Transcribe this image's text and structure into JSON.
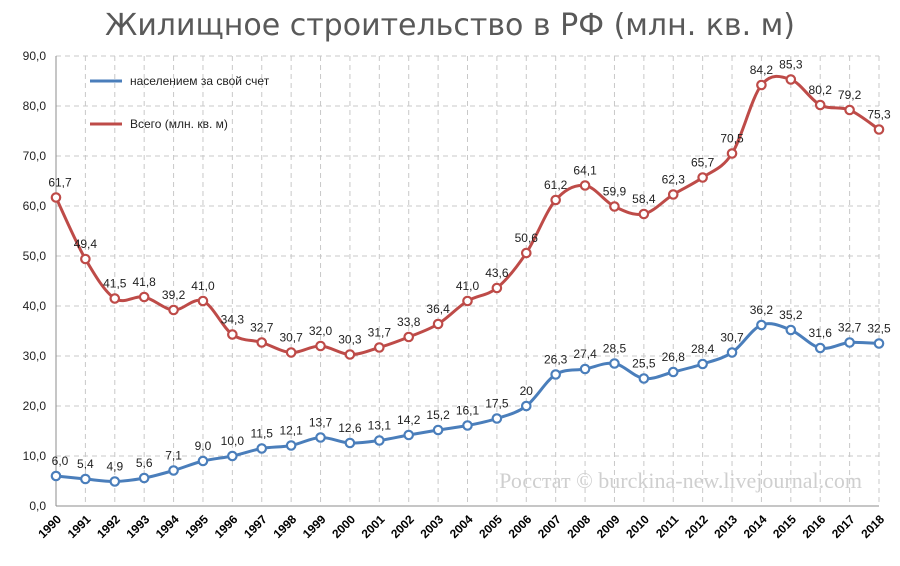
{
  "chart_data": {
    "type": "line",
    "title": "Жилищное строительство в РФ (млн. кв. м)",
    "xlabel": "",
    "ylabel": "",
    "ylim": [
      0,
      90
    ],
    "y_ticks": [
      "0,0",
      "10,0",
      "20,0",
      "30,0",
      "40,0",
      "50,0",
      "60,0",
      "70,0",
      "80,0",
      "90,0"
    ],
    "grid": true,
    "legend_position": "top-left",
    "categories": [
      "1990",
      "1991",
      "1992",
      "1993",
      "1994",
      "1995",
      "1996",
      "1997",
      "1998",
      "1999",
      "2000",
      "2001",
      "2002",
      "2003",
      "2004",
      "2005",
      "2006",
      "2007",
      "2008",
      "2009",
      "2010",
      "2011",
      "2012",
      "2013",
      "2014",
      "2015",
      "2016",
      "2017",
      "2018"
    ],
    "series": [
      {
        "name": "населением за свой счет",
        "color": "#4a7ebb",
        "values": [
          6.0,
          5.4,
          4.9,
          5.6,
          7.1,
          9.0,
          10.0,
          11.5,
          12.1,
          13.7,
          12.6,
          13.1,
          14.2,
          15.2,
          16.1,
          17.5,
          20,
          26.3,
          27.4,
          28.5,
          25.5,
          26.8,
          28.4,
          30.7,
          36.2,
          35.2,
          31.6,
          32.7,
          32.5
        ],
        "labels": [
          "6,0",
          "5,4",
          "4,9",
          "5,6",
          "7,1",
          "9,0",
          "10,0",
          "11,5",
          "12,1",
          "13,7",
          "12,6",
          "13,1",
          "14,2",
          "15,2",
          "16,1",
          "17,5",
          "20",
          "26,3",
          "27,4",
          "28,5",
          "25,5",
          "26,8",
          "28,4",
          "30,7",
          "36,2",
          "35,2",
          "31,6",
          "32,7",
          "32,5"
        ]
      },
      {
        "name": "Всего (млн. кв. м)",
        "color": "#be4b48",
        "values": [
          61.7,
          49.4,
          41.5,
          41.8,
          39.2,
          41.0,
          34.3,
          32.7,
          30.7,
          32.0,
          30.3,
          31.7,
          33.8,
          36.4,
          41.0,
          43.6,
          50.6,
          61.2,
          64.1,
          59.9,
          58.4,
          62.3,
          65.7,
          70.5,
          84.2,
          85.3,
          80.2,
          79.2,
          75.3
        ],
        "labels": [
          "61,7",
          "49,4",
          "41,5",
          "41,8",
          "39,2",
          "41,0",
          "34,3",
          "32,7",
          "30,7",
          "32,0",
          "30,3",
          "31,7",
          "33,8",
          "36,4",
          "41,0",
          "43,6",
          "50,6",
          "61,2",
          "64,1",
          "59,9",
          "58,4",
          "62,3",
          "65,7",
          "70,5",
          "84,2",
          "85,3",
          "80,2",
          "79,2",
          "75,3"
        ]
      }
    ],
    "watermark": "Росстат © burckina-new.livejournal.com"
  }
}
